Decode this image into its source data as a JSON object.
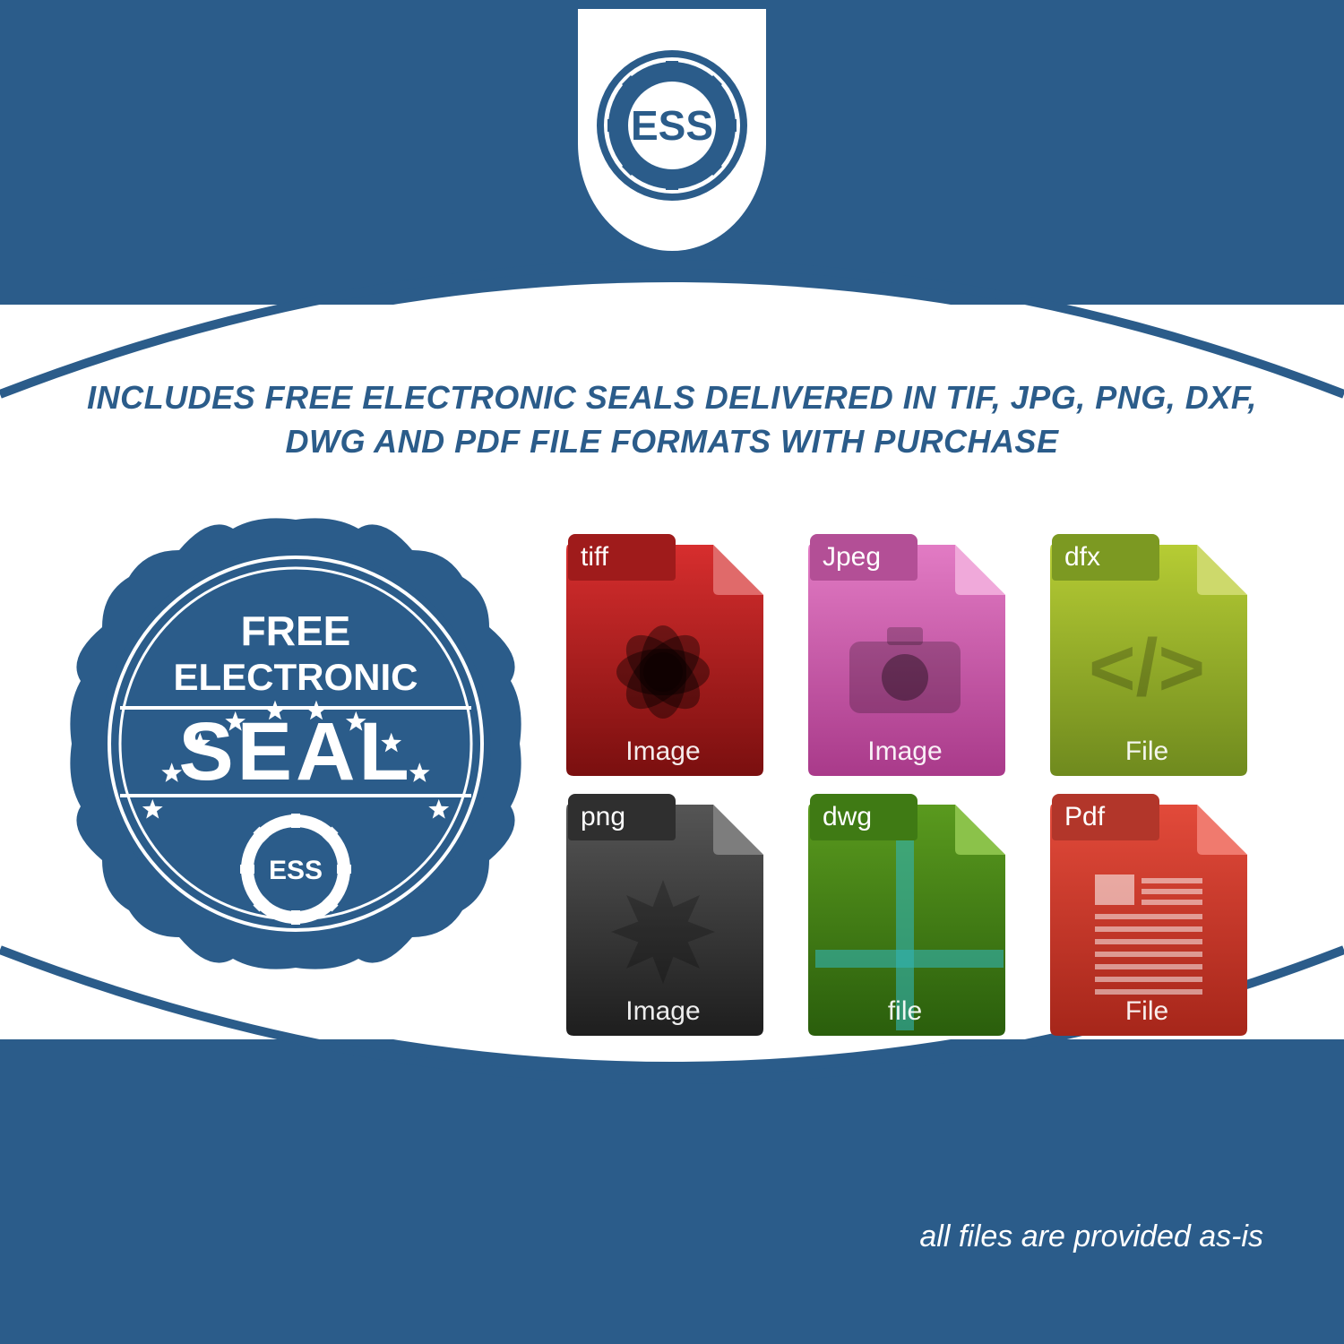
{
  "colors": {
    "brand_blue": "#2b5c8a",
    "white": "#ffffff"
  },
  "logo": {
    "text": "ESS"
  },
  "headline": "INCLUDES FREE ELECTRONIC SEALS DELIVERED IN TIF, JPG, PNG, DXF, DWG AND PDF FILE FORMATS WITH PURCHASE",
  "seal": {
    "line1": "FREE",
    "line2": "ELECTRONIC",
    "line3": "SEAL",
    "inner_text": "ESS",
    "star_count": 10,
    "fill": "#2b5c8a",
    "text_color": "#ffffff"
  },
  "files": [
    {
      "label": "tiff",
      "caption": "Image",
      "icon": "flower",
      "body_gradient": [
        "#d72e2e",
        "#7a0f0f"
      ],
      "tab_color": "#9f1b1b",
      "fold_color": "#e06a6a"
    },
    {
      "label": "Jpeg",
      "caption": "Image",
      "icon": "camera",
      "body_gradient": [
        "#e27bc4",
        "#a93a8a"
      ],
      "tab_color": "#b34f96",
      "fold_color": "#f0a9da"
    },
    {
      "label": "dfx",
      "caption": "File",
      "icon": "code",
      "body_gradient": [
        "#b6cc34",
        "#6f8a1e"
      ],
      "tab_color": "#7c9922",
      "fold_color": "#cdd96b"
    },
    {
      "label": "png",
      "caption": "Image",
      "icon": "burst",
      "body_gradient": [
        "#555555",
        "#1e1e1e"
      ],
      "tab_color": "#2f2f2f",
      "fold_color": "#7d7d7d"
    },
    {
      "label": "dwg",
      "caption": "file",
      "icon": "cross",
      "body_gradient": [
        "#5a9a1e",
        "#2a5e0c"
      ],
      "tab_color": "#3f7a14",
      "fold_color": "#8bc24a"
    },
    {
      "label": "Pdf",
      "caption": "File",
      "icon": "doclines",
      "body_gradient": [
        "#e24a3a",
        "#a6261a"
      ],
      "tab_color": "#b2362a",
      "fold_color": "#f07a6e"
    }
  ],
  "disclaimer": "all files are provided as-is"
}
